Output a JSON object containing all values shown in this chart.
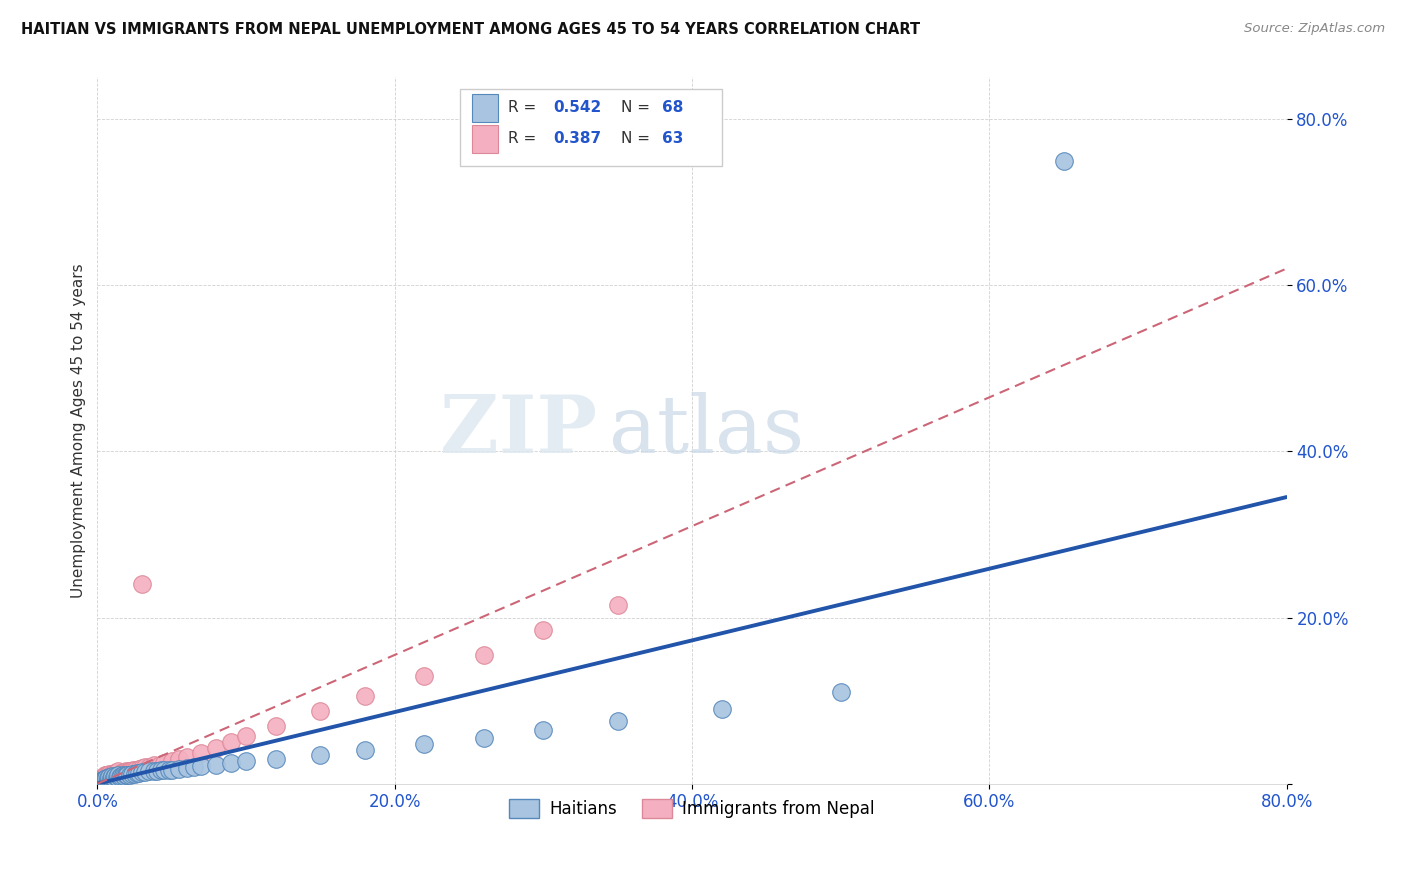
{
  "title": "HAITIAN VS IMMIGRANTS FROM NEPAL UNEMPLOYMENT AMONG AGES 45 TO 54 YEARS CORRELATION CHART",
  "source": "Source: ZipAtlas.com",
  "ylabel": "Unemployment Among Ages 45 to 54 years",
  "xlim": [
    0.0,
    0.8
  ],
  "ylim": [
    0.0,
    0.85
  ],
  "x_ticks": [
    0.0,
    0.2,
    0.4,
    0.6,
    0.8
  ],
  "y_ticks": [
    0.0,
    0.2,
    0.4,
    0.6,
    0.8
  ],
  "x_tick_labels": [
    "0.0%",
    "20.0%",
    "40.0%",
    "60.0%",
    "80.0%"
  ],
  "y_tick_labels": [
    "",
    "20.0%",
    "40.0%",
    "60.0%",
    "80.0%"
  ],
  "haitian_R": 0.542,
  "haitian_N": 68,
  "nepal_R": 0.387,
  "nepal_N": 63,
  "haitian_color": "#a8c4e0",
  "haitian_edge_color": "#5588bb",
  "haitian_line_color": "#2255aa",
  "nepal_color": "#f4b0c0",
  "nepal_edge_color": "#dd8899",
  "nepal_line_color": "#cc6677",
  "watermark_zip": "ZIP",
  "watermark_atlas": "atlas",
  "legend_haitians": "Haitians",
  "legend_nepal": "Immigrants from Nepal",
  "haitian_scatter_x": [
    0.002,
    0.003,
    0.003,
    0.004,
    0.004,
    0.005,
    0.005,
    0.005,
    0.005,
    0.006,
    0.006,
    0.006,
    0.006,
    0.007,
    0.007,
    0.007,
    0.008,
    0.008,
    0.008,
    0.009,
    0.009,
    0.01,
    0.01,
    0.01,
    0.011,
    0.011,
    0.012,
    0.012,
    0.013,
    0.014,
    0.014,
    0.015,
    0.016,
    0.017,
    0.018,
    0.019,
    0.02,
    0.022,
    0.023,
    0.025,
    0.027,
    0.028,
    0.03,
    0.032,
    0.035,
    0.038,
    0.04,
    0.043,
    0.045,
    0.048,
    0.05,
    0.055,
    0.06,
    0.065,
    0.07,
    0.08,
    0.09,
    0.1,
    0.12,
    0.15,
    0.18,
    0.22,
    0.26,
    0.3,
    0.35,
    0.42,
    0.5,
    0.65
  ],
  "haitian_scatter_y": [
    0.002,
    0.004,
    0.002,
    0.003,
    0.005,
    0.002,
    0.003,
    0.004,
    0.006,
    0.003,
    0.004,
    0.005,
    0.007,
    0.003,
    0.005,
    0.007,
    0.004,
    0.006,
    0.008,
    0.004,
    0.007,
    0.005,
    0.007,
    0.009,
    0.006,
    0.008,
    0.006,
    0.009,
    0.008,
    0.007,
    0.01,
    0.008,
    0.009,
    0.01,
    0.009,
    0.011,
    0.01,
    0.011,
    0.012,
    0.012,
    0.013,
    0.013,
    0.014,
    0.014,
    0.015,
    0.015,
    0.015,
    0.016,
    0.016,
    0.017,
    0.017,
    0.018,
    0.019,
    0.02,
    0.021,
    0.023,
    0.025,
    0.027,
    0.03,
    0.035,
    0.04,
    0.048,
    0.055,
    0.065,
    0.075,
    0.09,
    0.11,
    0.75
  ],
  "nepal_scatter_x": [
    0.002,
    0.002,
    0.003,
    0.003,
    0.004,
    0.004,
    0.004,
    0.005,
    0.005,
    0.005,
    0.005,
    0.006,
    0.006,
    0.006,
    0.007,
    0.007,
    0.007,
    0.008,
    0.008,
    0.008,
    0.009,
    0.009,
    0.01,
    0.01,
    0.011,
    0.011,
    0.012,
    0.012,
    0.013,
    0.014,
    0.014,
    0.015,
    0.016,
    0.017,
    0.018,
    0.019,
    0.02,
    0.021,
    0.022,
    0.024,
    0.025,
    0.028,
    0.03,
    0.032,
    0.035,
    0.038,
    0.042,
    0.045,
    0.05,
    0.055,
    0.06,
    0.07,
    0.08,
    0.09,
    0.1,
    0.12,
    0.15,
    0.18,
    0.22,
    0.26,
    0.3,
    0.35,
    0.03
  ],
  "nepal_scatter_y": [
    0.003,
    0.005,
    0.003,
    0.006,
    0.004,
    0.006,
    0.008,
    0.004,
    0.006,
    0.008,
    0.01,
    0.005,
    0.007,
    0.01,
    0.005,
    0.008,
    0.011,
    0.006,
    0.009,
    0.012,
    0.007,
    0.01,
    0.008,
    0.012,
    0.009,
    0.013,
    0.01,
    0.013,
    0.011,
    0.011,
    0.015,
    0.012,
    0.013,
    0.014,
    0.013,
    0.015,
    0.014,
    0.015,
    0.015,
    0.016,
    0.017,
    0.018,
    0.019,
    0.02,
    0.02,
    0.022,
    0.023,
    0.025,
    0.027,
    0.03,
    0.032,
    0.037,
    0.043,
    0.05,
    0.058,
    0.07,
    0.088,
    0.105,
    0.13,
    0.155,
    0.185,
    0.215,
    0.24
  ],
  "haitian_line_x": [
    0.0,
    0.8
  ],
  "haitian_line_y": [
    0.0,
    0.345
  ],
  "nepal_line_x": [
    0.0,
    0.8
  ],
  "nepal_line_y": [
    0.0,
    0.62
  ]
}
